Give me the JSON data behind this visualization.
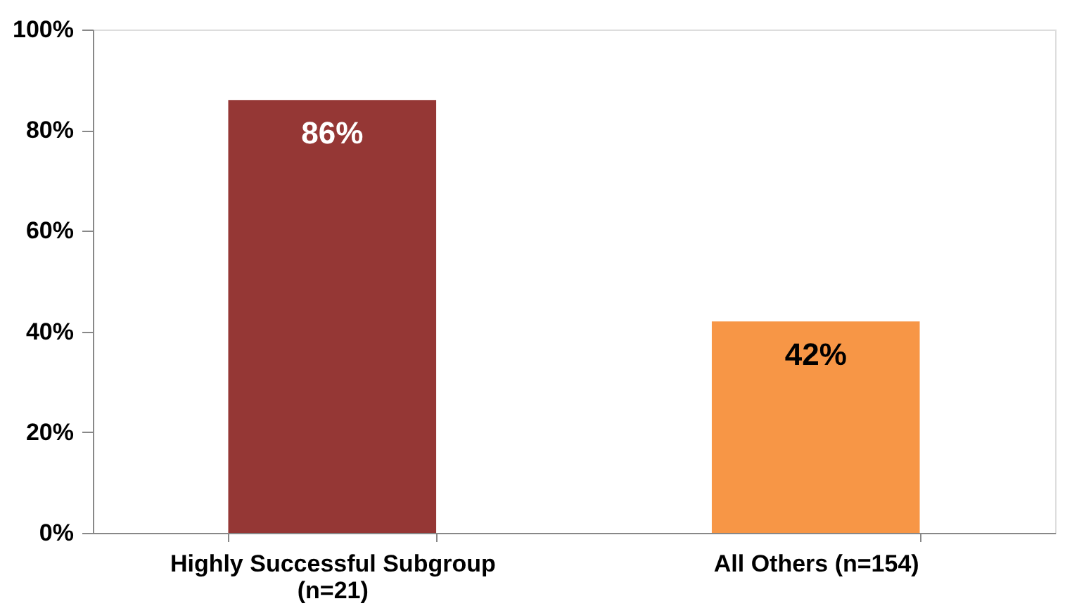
{
  "chart_data": {
    "type": "bar",
    "categories": [
      "Highly Successful Subgroup (n=21)",
      "All Others (n=154)"
    ],
    "values": [
      86,
      42
    ],
    "colors": [
      "#953735",
      "#f79646"
    ],
    "value_labels": [
      "86%",
      "42%"
    ],
    "ylim": [
      0,
      100
    ],
    "yticks": [
      {
        "value": 0,
        "label": "0%"
      },
      {
        "value": 20,
        "label": "20%"
      },
      {
        "value": 40,
        "label": "40%"
      },
      {
        "value": 60,
        "label": "60%"
      },
      {
        "value": 80,
        "label": "80%"
      },
      {
        "value": 100,
        "label": "100%"
      }
    ],
    "grid": false
  }
}
